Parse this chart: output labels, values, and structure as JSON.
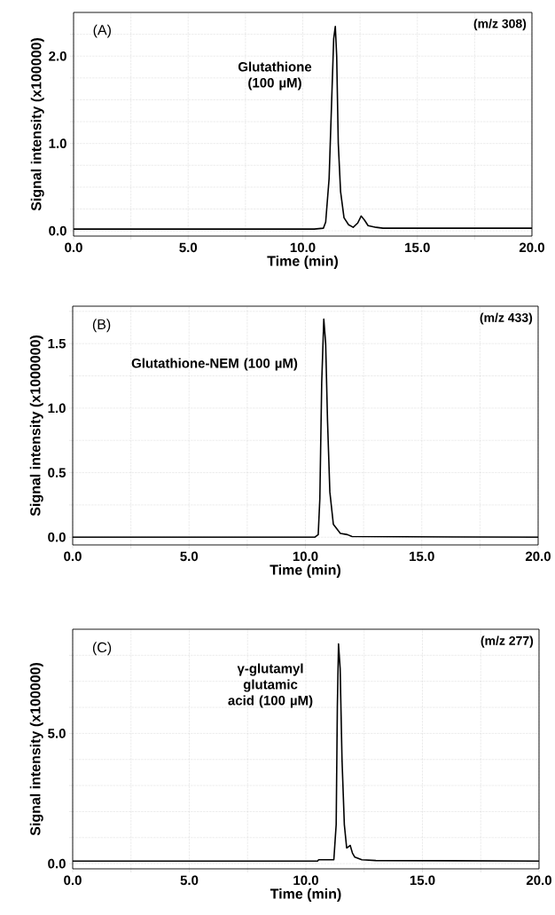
{
  "chart_data": [
    {
      "type": "line",
      "xlabel": "Time (min)",
      "ylabel": "Signal intensity (x100000)",
      "grid": true,
      "marker": "none",
      "line_style": "solid",
      "xlim": [
        0,
        20
      ],
      "ylim": [
        -0.06,
        2.5
      ],
      "xticks": [
        {
          "value": 0,
          "label": "0.0"
        },
        {
          "value": 2.5,
          "label": null
        },
        {
          "value": 5,
          "label": "5.0"
        },
        {
          "value": 7.5,
          "label": null
        },
        {
          "value": 10,
          "label": "10.0"
        },
        {
          "value": 12.5,
          "label": null
        },
        {
          "value": 15,
          "label": "15.0"
        },
        {
          "value": 17.5,
          "label": null
        },
        {
          "value": 20,
          "label": "20.0"
        }
      ],
      "yticks": [
        {
          "value": 0,
          "label": "0.0"
        },
        {
          "value": 0.25,
          "label": null
        },
        {
          "value": 0.5,
          "label": null
        },
        {
          "value": 0.75,
          "label": null
        },
        {
          "value": 1,
          "label": "1.0"
        },
        {
          "value": 1.25,
          "label": null
        },
        {
          "value": 1.5,
          "label": null
        },
        {
          "value": 1.75,
          "label": null
        },
        {
          "value": 2,
          "label": "2.0"
        },
        {
          "value": 2.25,
          "label": null
        }
      ],
      "annotations": [
        "(A)",
        "(m/z 308)",
        "Glutathione (100 µM)"
      ],
      "series": [
        {
          "color": "#000000",
          "x": [
            0,
            10.0,
            10.5,
            10.9,
            11.0,
            11.15,
            11.25,
            11.35,
            11.42,
            11.48,
            11.55,
            11.65,
            11.8,
            12.0,
            12.2,
            12.4,
            12.55,
            12.7,
            12.85,
            13.2,
            13.5,
            20
          ],
          "values": [
            0.02,
            0.02,
            0.02,
            0.03,
            0.1,
            0.6,
            1.4,
            2.2,
            2.34,
            2.0,
            1.0,
            0.45,
            0.15,
            0.07,
            0.04,
            0.09,
            0.17,
            0.12,
            0.06,
            0.04,
            0.03,
            0.03
          ]
        }
      ]
    },
    {
      "type": "line",
      "xlabel": "Time (min)",
      "ylabel": "Signal intensity (x1000000)",
      "grid": true,
      "marker": "none",
      "line_style": "solid",
      "xlim": [
        0,
        20
      ],
      "ylim": [
        -0.06,
        1.79
      ],
      "xticks": [
        {
          "value": 0,
          "label": "0.0"
        },
        {
          "value": 2.5,
          "label": null
        },
        {
          "value": 5,
          "label": "5.0"
        },
        {
          "value": 7.5,
          "label": null
        },
        {
          "value": 10,
          "label": "10.0"
        },
        {
          "value": 12.5,
          "label": null
        },
        {
          "value": 15,
          "label": "15.0"
        },
        {
          "value": 17.5,
          "label": null
        },
        {
          "value": 20,
          "label": "20.0"
        }
      ],
      "yticks": [
        {
          "value": 0,
          "label": "0.0"
        },
        {
          "value": 0.25,
          "label": null
        },
        {
          "value": 0.5,
          "label": "0.5"
        },
        {
          "value": 0.75,
          "label": null
        },
        {
          "value": 1,
          "label": "1.0"
        },
        {
          "value": 1.25,
          "label": null
        },
        {
          "value": 1.5,
          "label": "1.5"
        },
        {
          "value": 1.75,
          "label": null
        }
      ],
      "annotations": [
        "(B)",
        "(m/z 433)",
        "Glutathione-NEM (100 µM)"
      ],
      "series": [
        {
          "color": "#000000",
          "x": [
            0,
            10.4,
            10.55,
            10.62,
            10.7,
            10.79,
            10.87,
            10.95,
            11.05,
            11.2,
            11.5,
            11.8,
            12.0,
            20
          ],
          "values": [
            0,
            0,
            0.02,
            0.3,
            1.2,
            1.69,
            1.5,
            0.9,
            0.35,
            0.1,
            0.03,
            0.02,
            0.005,
            0
          ]
        }
      ]
    },
    {
      "type": "line",
      "xlabel": "Time (min)",
      "ylabel": "Signal intensity (x100000)",
      "grid": true,
      "marker": "none",
      "line_style": "solid",
      "xlim": [
        0,
        20
      ],
      "ylim": [
        -0.2,
        9.0
      ],
      "xticks": [
        {
          "value": 0,
          "label": "0.0"
        },
        {
          "value": 2.5,
          "label": null
        },
        {
          "value": 5,
          "label": "5.0"
        },
        {
          "value": 7.5,
          "label": null
        },
        {
          "value": 10,
          "label": "10.0"
        },
        {
          "value": 12.5,
          "label": null
        },
        {
          "value": 15,
          "label": "15.0"
        },
        {
          "value": 17.5,
          "label": null
        },
        {
          "value": 20,
          "label": "20.0"
        }
      ],
      "yticks": [
        {
          "value": 0,
          "label": "0.0"
        },
        {
          "value": 1,
          "label": null
        },
        {
          "value": 2,
          "label": null
        },
        {
          "value": 3,
          "label": null
        },
        {
          "value": 4,
          "label": null
        },
        {
          "value": 5,
          "label": "5.0"
        },
        {
          "value": 6,
          "label": null
        },
        {
          "value": 7,
          "label": null
        },
        {
          "value": 8,
          "label": null
        }
      ],
      "annotations": [
        "(C)",
        "(m/z 277)",
        "γ-glutamyl glutamic acid (100 µM)"
      ],
      "series": [
        {
          "color": "#000000",
          "x": [
            0,
            10.5,
            10.55,
            11.2,
            11.3,
            11.35,
            11.4,
            11.47,
            11.55,
            11.65,
            11.75,
            11.9,
            12.0,
            12.1,
            12.4,
            13.0,
            20
          ],
          "values": [
            0.1,
            0.1,
            0.15,
            0.15,
            1.5,
            6.0,
            8.44,
            7.5,
            4.0,
            1.5,
            0.6,
            0.7,
            0.4,
            0.25,
            0.15,
            0.12,
            0.1
          ]
        }
      ]
    }
  ]
}
